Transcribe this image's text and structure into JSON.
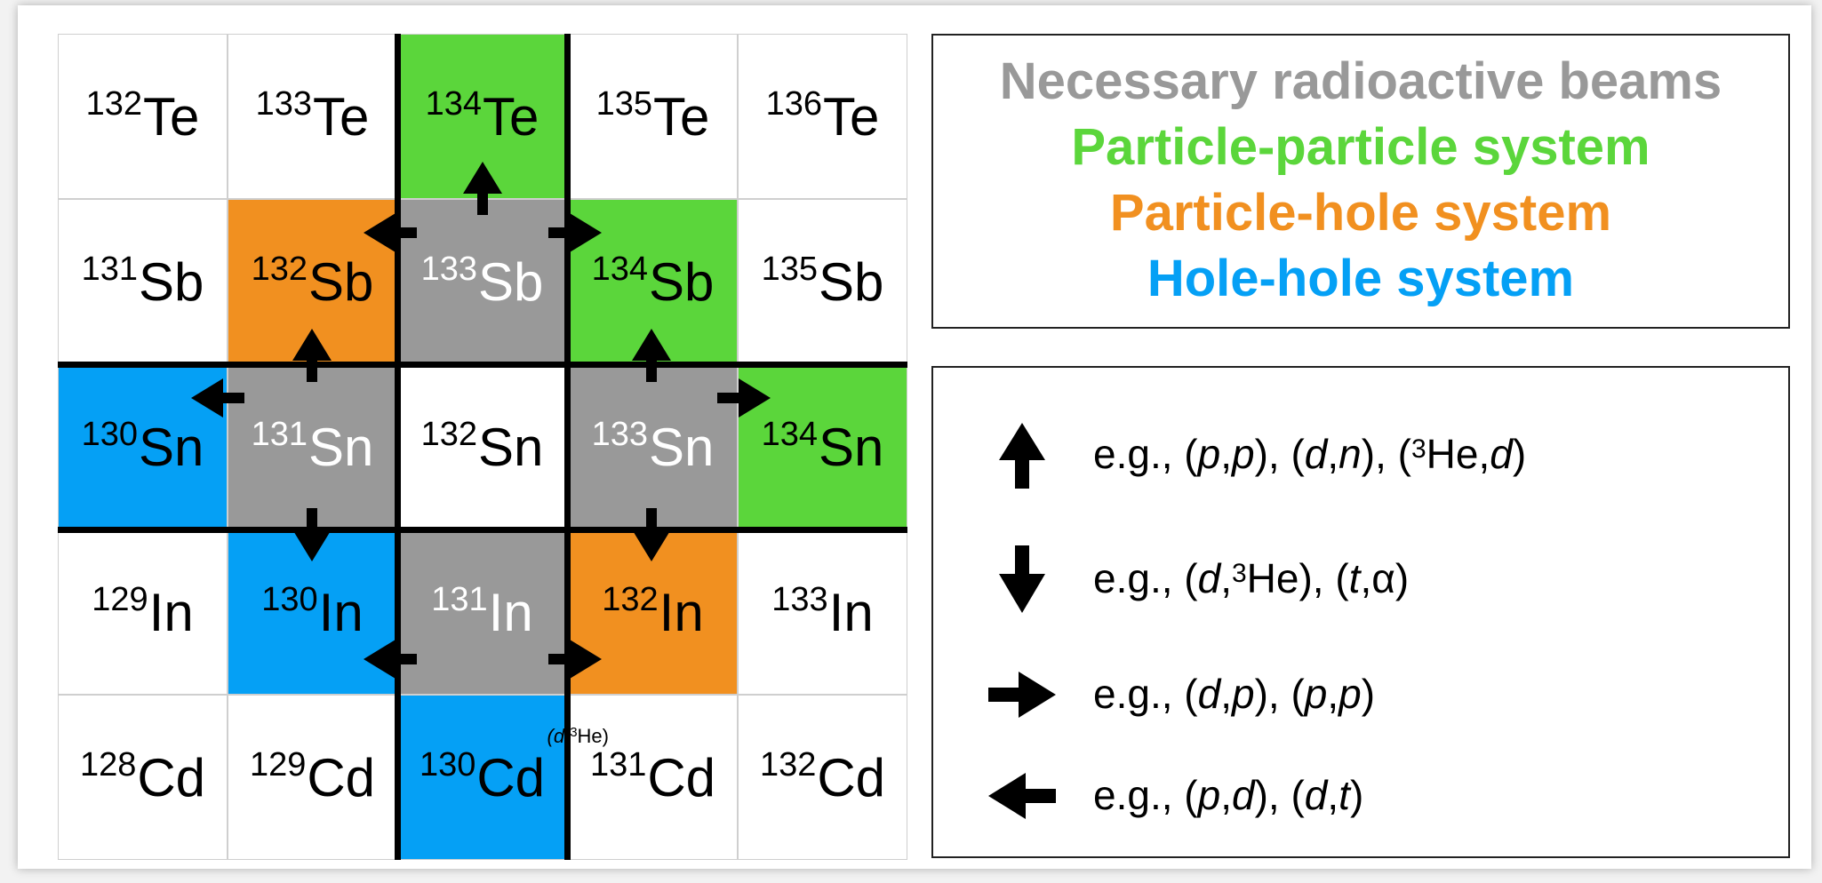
{
  "chart_grid": {
    "rows": [
      [
        {
          "mass": "132",
          "symbol": "Te",
          "color": "white"
        },
        {
          "mass": "133",
          "symbol": "Te",
          "color": "white"
        },
        {
          "mass": "134",
          "symbol": "Te",
          "color": "green"
        },
        {
          "mass": "135",
          "symbol": "Te",
          "color": "white"
        },
        {
          "mass": "136",
          "symbol": "Te",
          "color": "white"
        }
      ],
      [
        {
          "mass": "131",
          "symbol": "Sb",
          "color": "white"
        },
        {
          "mass": "132",
          "symbol": "Sb",
          "color": "orange"
        },
        {
          "mass": "133",
          "symbol": "Sb",
          "color": "gray"
        },
        {
          "mass": "134",
          "symbol": "Sb",
          "color": "green"
        },
        {
          "mass": "135",
          "symbol": "Sb",
          "color": "white"
        }
      ],
      [
        {
          "mass": "130",
          "symbol": "Sn",
          "color": "blue"
        },
        {
          "mass": "131",
          "symbol": "Sn",
          "color": "gray"
        },
        {
          "mass": "132",
          "symbol": "Sn",
          "color": "white"
        },
        {
          "mass": "133",
          "symbol": "Sn",
          "color": "gray"
        },
        {
          "mass": "134",
          "symbol": "Sn",
          "color": "green"
        }
      ],
      [
        {
          "mass": "129",
          "symbol": "In",
          "color": "white"
        },
        {
          "mass": "130",
          "symbol": "In",
          "color": "blue"
        },
        {
          "mass": "131",
          "symbol": "In",
          "color": "gray"
        },
        {
          "mass": "132",
          "symbol": "In",
          "color": "orange"
        },
        {
          "mass": "133",
          "symbol": "In",
          "color": "white"
        }
      ],
      [
        {
          "mass": "128",
          "symbol": "Cd",
          "color": "white"
        },
        {
          "mass": "129",
          "symbol": "Cd",
          "color": "white"
        },
        {
          "mass": "130",
          "symbol": "Cd",
          "color": "blue"
        },
        {
          "mass": "131",
          "symbol": "Cd",
          "color": "white"
        },
        {
          "mass": "132",
          "symbol": "Cd",
          "color": "white"
        }
      ]
    ],
    "cd130_note": {
      "prefix": "(d,",
      "mass": "3",
      "suffix": "He)"
    }
  },
  "colors": {
    "white": "#ffffff",
    "gray": "#999999",
    "green": "#5bd63b",
    "orange": "#f19020",
    "blue": "#05a0f5"
  },
  "legend": {
    "lines": [
      {
        "text": "Necessary radioactive beams",
        "color": "#999999"
      },
      {
        "text": "Particle-particle system",
        "color": "#5bd63b"
      },
      {
        "text": "Particle-hole system",
        "color": "#f19020"
      },
      {
        "text": "Hole-hole system",
        "color": "#05a0f5"
      }
    ]
  },
  "reactions": {
    "up": {
      "icon": "arrow-up-icon",
      "html": "e.g., (<i>p</i>,<i>p</i>), (<i>d</i>,<i>n</i>), (<sup>3</sup>He,<i>d</i>)"
    },
    "down": {
      "icon": "arrow-down-icon",
      "html": "e.g., (<i>d</i>,<sup>3</sup>He), (<i>t</i>,α)"
    },
    "right": {
      "icon": "arrow-right-icon",
      "html": "e.g., (<i>d</i>,<i>p</i>), (<i>p</i>,<i>p</i>)"
    },
    "left": {
      "icon": "arrow-left-icon",
      "html": "e.g., (<i>p</i>,<i>d</i>), (<i>d</i>,<i>t</i>)"
    }
  }
}
